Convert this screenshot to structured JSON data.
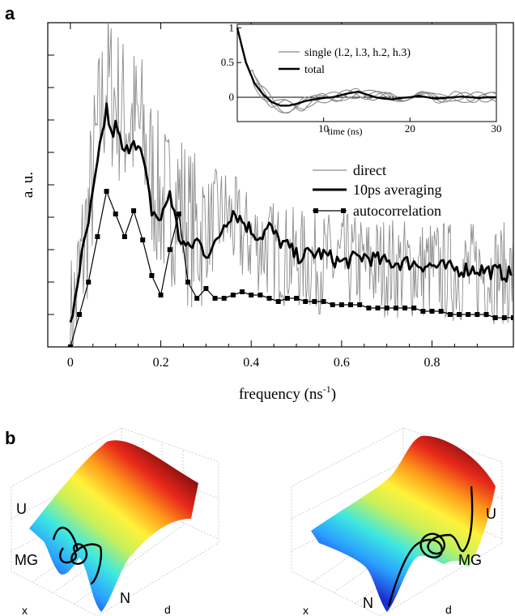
{
  "panels": {
    "a_label": "a",
    "b_label": "b"
  },
  "chart_data": [
    {
      "type": "line",
      "xlabel": "frequency (ns",
      "xlabel_sup": "-1",
      "xlabel_end": ")",
      "ylabel": "a. u.",
      "xlim": [
        -0.05,
        0.98
      ],
      "xticks": [
        0,
        0.2,
        0.4,
        0.6,
        0.8
      ],
      "xtick_labels": [
        "0",
        "0.2",
        "0.4",
        "0.6",
        "0.8"
      ],
      "ylim": [
        0,
        10
      ],
      "legend_position": "center-right",
      "series": [
        {
          "name": "direct",
          "style": "thin-gray-noisy",
          "color": "#8c8c8c",
          "x": [
            0,
            0.02,
            0.04,
            0.06,
            0.08,
            0.1,
            0.12,
            0.14,
            0.16,
            0.18,
            0.2,
            0.22,
            0.24,
            0.26,
            0.28,
            0.3,
            0.32,
            0.34,
            0.36,
            0.38,
            0.4,
            0.42,
            0.44,
            0.46,
            0.48,
            0.5,
            0.55,
            0.6,
            0.65,
            0.7,
            0.75,
            0.8,
            0.85,
            0.9,
            0.95,
            0.98
          ],
          "y": [
            0.3,
            2.2,
            4.0,
            6.5,
            8.2,
            7.6,
            7.1,
            6.9,
            6.6,
            5.3,
            4.5,
            4.3,
            4.6,
            3.8,
            3.5,
            3.6,
            3.9,
            4.1,
            3.8,
            3.4,
            3.3,
            3.2,
            3.0,
            2.9,
            2.8,
            2.7,
            2.6,
            2.6,
            2.5,
            2.5,
            2.4,
            2.4,
            2.3,
            2.3,
            2.3,
            2.2
          ],
          "amplitude": 1.6
        },
        {
          "name": "10ps averaging",
          "style": "thick-black",
          "color": "#000000",
          "x": [
            0,
            0.02,
            0.04,
            0.06,
            0.08,
            0.09,
            0.1,
            0.12,
            0.14,
            0.16,
            0.18,
            0.2,
            0.22,
            0.24,
            0.26,
            0.28,
            0.3,
            0.32,
            0.34,
            0.36,
            0.38,
            0.4,
            0.42,
            0.44,
            0.46,
            0.48,
            0.5,
            0.55,
            0.6,
            0.65,
            0.7,
            0.75,
            0.8,
            0.85,
            0.9,
            0.95,
            0.98
          ],
          "y": [
            0.6,
            2.4,
            3.8,
            5.6,
            7.4,
            6.5,
            6.8,
            5.9,
            6.5,
            5.8,
            4.2,
            3.9,
            4.8,
            3.4,
            3.0,
            3.3,
            2.9,
            3.1,
            3.8,
            4.2,
            3.9,
            3.6,
            3.4,
            3.7,
            3.3,
            3.1,
            2.8,
            2.9,
            2.6,
            2.8,
            2.6,
            2.6,
            2.5,
            2.4,
            2.4,
            2.3,
            2.2
          ],
          "amplitude": 0.25
        },
        {
          "name": "autocorrelation",
          "style": "thin-black-square-markers",
          "color": "#000000",
          "x": [
            0,
            0.02,
            0.04,
            0.06,
            0.08,
            0.1,
            0.12,
            0.14,
            0.16,
            0.18,
            0.2,
            0.22,
            0.24,
            0.26,
            0.28,
            0.3,
            0.32,
            0.34,
            0.36,
            0.38,
            0.4,
            0.42,
            0.44,
            0.46,
            0.48,
            0.5,
            0.52,
            0.54,
            0.56,
            0.58,
            0.6,
            0.62,
            0.64,
            0.66,
            0.68,
            0.7,
            0.72,
            0.74,
            0.76,
            0.78,
            0.8,
            0.82,
            0.84,
            0.86,
            0.88,
            0.9,
            0.92,
            0.94,
            0.96,
            0.98
          ],
          "y": [
            0.0,
            1.0,
            2.0,
            3.4,
            4.8,
            4.1,
            3.4,
            4.2,
            3.3,
            2.2,
            1.6,
            3.0,
            4.1,
            2.0,
            1.5,
            1.8,
            1.5,
            1.5,
            1.6,
            1.7,
            1.6,
            1.6,
            1.5,
            1.4,
            1.5,
            1.5,
            1.4,
            1.4,
            1.4,
            1.3,
            1.3,
            1.3,
            1.3,
            1.2,
            1.2,
            1.2,
            1.2,
            1.2,
            1.2,
            1.1,
            1.1,
            1.1,
            1.0,
            1.0,
            1.0,
            1.0,
            1.0,
            0.9,
            0.9,
            0.9
          ]
        }
      ]
    },
    {
      "type": "line",
      "role": "inset",
      "xlabel": "time (ns)",
      "xlim": [
        0,
        30
      ],
      "ylim": [
        -0.35,
        1.05
      ],
      "xticks": [
        10,
        20,
        30
      ],
      "xtick_labels": [
        "10",
        "20",
        "30"
      ],
      "yticks": [
        0,
        0.5,
        1
      ],
      "ytick_labels": [
        "0",
        "0.5",
        "1"
      ],
      "legend_position": "top-right",
      "series": [
        {
          "name": "single (l.2, l.3, h.2, h.3)",
          "color": "#888888",
          "count": 4,
          "x": [
            0,
            1,
            2,
            3,
            4,
            5,
            6,
            7,
            8,
            9,
            10,
            11,
            12,
            13,
            14,
            15,
            16,
            17,
            18,
            19,
            20,
            21,
            22,
            23,
            24,
            25,
            26,
            27,
            28,
            29,
            30
          ],
          "y": [
            1.0,
            0.52,
            0.22,
            0.06,
            -0.06,
            -0.12,
            -0.14,
            -0.13,
            -0.08,
            -0.04,
            -0.01,
            0.0,
            0.02,
            0.04,
            0.06,
            0.04,
            0.02,
            0.0,
            -0.01,
            0.01,
            0.03,
            0.02,
            0.0,
            -0.02,
            0.0,
            0.02,
            0.0,
            -0.01,
            0.01,
            0.0,
            0.0
          ],
          "spread": 0.08
        },
        {
          "name": "total",
          "color": "#000000",
          "x": [
            0,
            1,
            2,
            3,
            4,
            5,
            6,
            7,
            8,
            9,
            10,
            11,
            12,
            13,
            14,
            15,
            16,
            17,
            18,
            19,
            20,
            21,
            22,
            23,
            24,
            25,
            26,
            27,
            28,
            29,
            30
          ],
          "y": [
            1.0,
            0.5,
            0.2,
            0.04,
            -0.07,
            -0.12,
            -0.12,
            -0.09,
            -0.05,
            -0.03,
            -0.01,
            0.0,
            0.03,
            0.06,
            0.08,
            0.04,
            0.0,
            -0.02,
            -0.03,
            -0.01,
            0.0,
            0.02,
            0.0,
            -0.02,
            -0.01,
            0.0,
            0.01,
            0.0,
            -0.01,
            0.0,
            0.0
          ]
        }
      ]
    },
    {
      "type": "surface",
      "role": "energy-landscape-left",
      "colormap": [
        "#1b2fd0",
        "#2aa0ff",
        "#3ee8e0",
        "#c8f05a",
        "#fff23a",
        "#ff9a1a",
        "#e8281a",
        "#8c1010"
      ],
      "annotations": [
        "U",
        "MG",
        "N",
        "x",
        "d"
      ]
    },
    {
      "type": "surface",
      "role": "energy-landscape-right",
      "colormap": [
        "#1b2fd0",
        "#2aa0ff",
        "#3ee8e0",
        "#c8f05a",
        "#fff23a",
        "#ff9a1a",
        "#e8281a",
        "#8c1010"
      ],
      "annotations": [
        "U",
        "MG",
        "N",
        "x",
        "d"
      ]
    }
  ]
}
